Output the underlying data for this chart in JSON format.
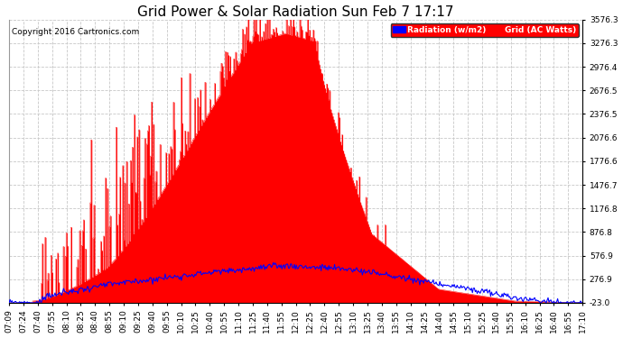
{
  "title": "Grid Power & Solar Radiation Sun Feb 7 17:17",
  "copyright": "Copyright 2016 Cartronics.com",
  "bg_color": "#ffffff",
  "plot_bg_color": "#ffffff",
  "grid_color": "#c8c8c8",
  "y_min": -23.0,
  "y_max": 3576.3,
  "y_ticks": [
    -23.0,
    276.9,
    576.9,
    876.8,
    1176.8,
    1476.7,
    1776.6,
    2076.6,
    2376.5,
    2676.5,
    2976.4,
    3276.3,
    3576.3
  ],
  "x_labels": [
    "07:09",
    "07:24",
    "07:40",
    "07:55",
    "08:10",
    "08:25",
    "08:40",
    "08:55",
    "09:10",
    "09:25",
    "09:40",
    "09:55",
    "10:10",
    "10:25",
    "10:40",
    "10:55",
    "11:10",
    "11:25",
    "11:40",
    "11:55",
    "12:10",
    "12:25",
    "12:40",
    "12:55",
    "13:10",
    "13:25",
    "13:40",
    "13:55",
    "14:10",
    "14:25",
    "14:40",
    "14:55",
    "15:10",
    "15:25",
    "15:40",
    "15:55",
    "16:10",
    "16:25",
    "16:40",
    "16:55",
    "17:10"
  ],
  "red_area_color": "#ff0000",
  "blue_line_color": "#0000ff",
  "legend_radiation_label": "Radiation (w/m2)",
  "legend_grid_label": "Grid (AC Watts)",
  "legend_radiation_color": "#0000ff",
  "legend_grid_color": "#ff0000",
  "title_fontsize": 11,
  "tick_fontsize": 6.5,
  "n_points": 600
}
